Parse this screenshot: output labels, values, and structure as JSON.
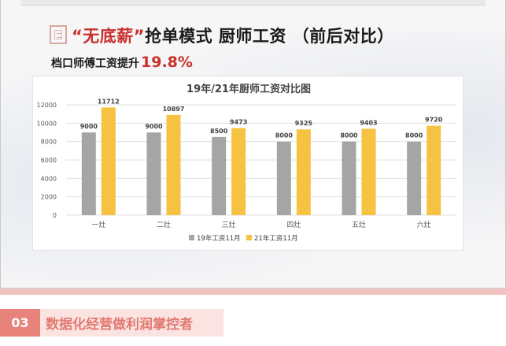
{
  "slide": {
    "title_quote": "“无底薪”",
    "title_rest": "抢单模式 厨师工资 （前后对比）",
    "subtitle_text": "档口师傅工资提升",
    "subtitle_pct": "19.8%"
  },
  "section": {
    "number": "03",
    "title": "数据化经营做利润掌控者"
  },
  "colors": {
    "series_19": "#a5a5a5",
    "series_21": "#f5c242",
    "accent_red": "#c9302c"
  },
  "chart_data": {
    "type": "bar",
    "title": "19年/21年厨师工资对比图",
    "categories": [
      "一灶",
      "二灶",
      "三灶",
      "四灶",
      "五灶",
      "六灶"
    ],
    "series": [
      {
        "name": "19年工资11月",
        "values": [
          9000,
          9000,
          8500,
          8000,
          8000,
          8000
        ]
      },
      {
        "name": "21年工资11月",
        "values": [
          11712,
          10897,
          9473,
          9325,
          9403,
          9720
        ]
      }
    ],
    "ylim": [
      0,
      12000
    ],
    "yticks": [
      0,
      2000,
      4000,
      6000,
      8000,
      10000,
      12000
    ],
    "grid": true,
    "legend": "bottom"
  }
}
